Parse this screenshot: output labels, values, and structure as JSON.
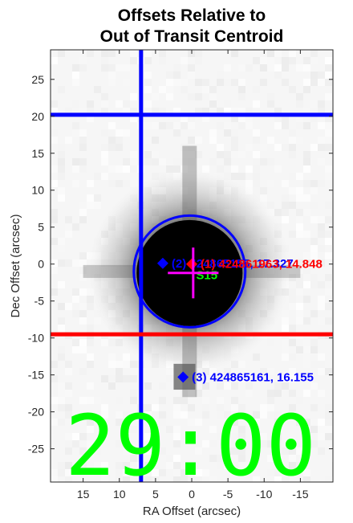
{
  "chart_data": {
    "type": "scatter",
    "title_lines": [
      "Offsets Relative to",
      "Out of Transit Centroid"
    ],
    "xlabel": "RA Offset (arcsec)",
    "ylabel": "Dec Offset (arcsec)",
    "xlim": [
      19.5,
      -19.5
    ],
    "ylim": [
      -29.5,
      29
    ],
    "x_ticks": [
      15,
      10,
      5,
      0,
      -5,
      -10,
      -15
    ],
    "y_ticks": [
      25,
      20,
      15,
      10,
      5,
      0,
      -5,
      -10,
      -15,
      -20,
      -25
    ],
    "background": "grayscale pixelated stellar image, star at origin",
    "lines": [
      {
        "name": "blue-vertical",
        "orientation": "vertical",
        "value": 7.0,
        "color": "#0000ff"
      },
      {
        "name": "blue-horizontal",
        "orientation": "horizontal",
        "value": 20.2,
        "color": "#0000ff"
      },
      {
        "name": "red-horizontal",
        "orientation": "horizontal",
        "value": -9.5,
        "color": "#ff0000"
      }
    ],
    "circle": {
      "center": [
        0.3,
        -1.0
      ],
      "radius": 7.7,
      "color": "#0000ff"
    },
    "cross": {
      "x": -0.2,
      "y": -1.2,
      "size": 3.5,
      "color": "#ff00ff"
    },
    "stars": [
      {
        "x": 4.0,
        "y": 0.1,
        "label": "(2) 424865155, 17.327",
        "color": "#0000ff"
      },
      {
        "x": 0.0,
        "y": 0.0,
        "label": "(1) 424861963, 14.848",
        "color": "#ff0000"
      },
      {
        "x": 1.2,
        "y": -15.3,
        "label": "(3) 424865161, 16.155",
        "color": "#0000ff"
      }
    ],
    "green_label": {
      "x": -0.6,
      "y": -1.5,
      "text": "S15",
      "color": "#00ff00"
    },
    "timer_text": "29:00.0",
    "timer_color": "#00ff00"
  }
}
